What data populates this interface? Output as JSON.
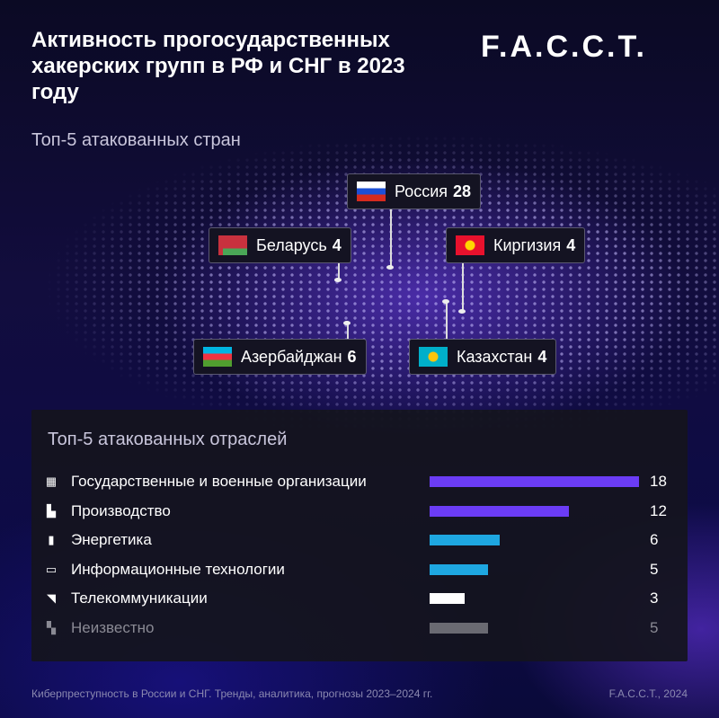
{
  "title": "Активность прогосударственных хакерских групп в РФ и СНГ в 2023 году",
  "logo": "F.A.C.C.T.",
  "map": {
    "subtitle": "Топ-5 атакованных стран",
    "countries": [
      {
        "name": "Россия",
        "value": "28",
        "flag": "russia"
      },
      {
        "name": "Беларусь",
        "value": "4",
        "flag": "belarus"
      },
      {
        "name": "Киргизия",
        "value": "4",
        "flag": "kyrgyzstan"
      },
      {
        "name": "Азербайджан",
        "value": "6",
        "flag": "azerbaijan"
      },
      {
        "name": "Казахстан",
        "value": "4",
        "flag": "kazakhstan"
      }
    ]
  },
  "chart_data": {
    "type": "bar",
    "orientation": "horizontal",
    "title": "Топ-5 атакованных отраслей",
    "categories": [
      "Государственные и военные организации",
      "Производство",
      "Энергетика",
      "Информационные технологии",
      "Телекоммуникации",
      "Неизвестно"
    ],
    "values": [
      18,
      12,
      6,
      5,
      3,
      5
    ],
    "icons": [
      "building-icon",
      "factory-icon",
      "energy-icon",
      "laptop-icon",
      "signal-icon",
      "unknown-icon"
    ],
    "colors": [
      "#6b3cf5",
      "#6b3cf5",
      "#1ea7e1",
      "#1ea7e1",
      "#ffffff",
      "#6a6a72"
    ],
    "xlim": [
      0,
      18
    ],
    "grid": false
  },
  "footer": {
    "source": "Киберпреступность в России и СНГ. Тренды, аналитика, прогнозы 2023–2024 гг.",
    "copyright": "F.A.C.C.T., 2024"
  }
}
